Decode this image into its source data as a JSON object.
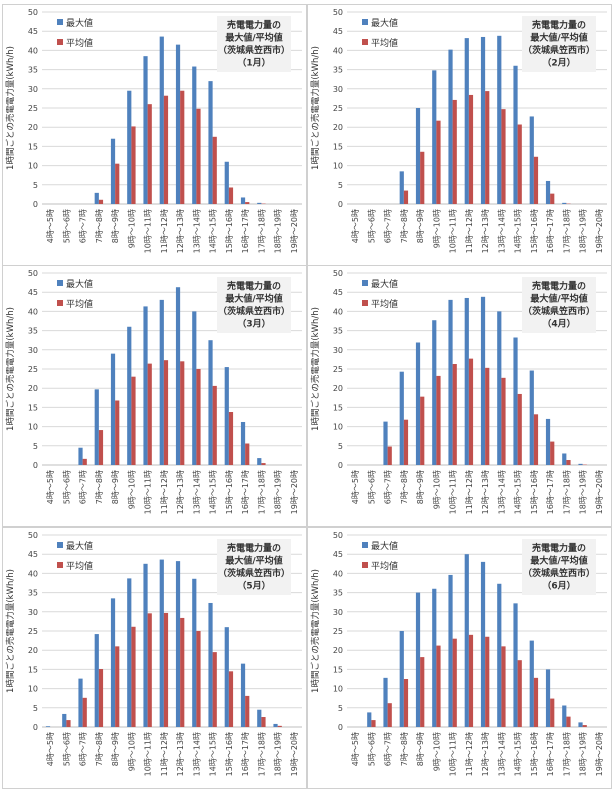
{
  "chart_data": [
    {
      "type": "bar",
      "title": [
        "売電電力量の",
        "最大値/平均値",
        "（茨城県笠西市）",
        "（1月）"
      ],
      "ylabel": "1時間ごとの売電電力量(kWh/h)",
      "ylim": [
        0,
        50
      ],
      "yticks": [
        0,
        5,
        10,
        15,
        20,
        25,
        30,
        35,
        40,
        45,
        50
      ],
      "grid": true,
      "legend_position": "top-left",
      "categories": [
        "4時～5時",
        "5時～6時",
        "6時～7時",
        "7時～8時",
        "8時～9時",
        "9時～10時",
        "10時～11時",
        "11時～12時",
        "12時～13時",
        "13時～14時",
        "14時～15時",
        "15時～16時",
        "16時～17時",
        "17時～18時",
        "18時～19時",
        "19時～20時"
      ],
      "series": [
        {
          "name": "最大値",
          "color": "#4f81bd",
          "values": [
            0,
            0,
            0,
            2.9,
            17,
            29.5,
            38.5,
            43.6,
            41.5,
            35.8,
            32,
            11,
            1.7,
            0.3,
            0,
            0
          ]
        },
        {
          "name": "平均値",
          "color": "#c0504d",
          "values": [
            0,
            0,
            0,
            1.1,
            10.5,
            20.2,
            26,
            28.2,
            29.5,
            24.8,
            17.5,
            4.3,
            0.5,
            0.1,
            0,
            0
          ]
        }
      ]
    },
    {
      "type": "bar",
      "title": [
        "売電電力量の",
        "最大値/平均値",
        "（茨城県笠西市）",
        "（2月）"
      ],
      "ylabel": "1時間ごとの売電電力量(kWh/h)",
      "ylim": [
        0,
        50
      ],
      "yticks": [
        0,
        5,
        10,
        15,
        20,
        25,
        30,
        35,
        40,
        45,
        50
      ],
      "grid": true,
      "legend_position": "top-left",
      "categories": [
        "4時～5時",
        "5時～6時",
        "6時～7時",
        "7時～8時",
        "8時～9時",
        "9時～10時",
        "10時～11時",
        "11時～12時",
        "12時～13時",
        "13時～14時",
        "14時～15時",
        "15時～16時",
        "16時～17時",
        "17時～18時",
        "18時～19時",
        "19時～20時"
      ],
      "series": [
        {
          "name": "最大値",
          "color": "#4f81bd",
          "values": [
            0,
            0,
            0,
            8.5,
            25,
            34.8,
            40.2,
            43.2,
            43.5,
            43.8,
            36,
            22.8,
            6,
            0.3,
            0,
            0
          ]
        },
        {
          "name": "平均値",
          "color": "#c0504d",
          "values": [
            0,
            0,
            0,
            3.5,
            13.6,
            21.7,
            27.1,
            28.4,
            29.4,
            24.7,
            20.7,
            12.3,
            2.7,
            0.1,
            0,
            0
          ]
        }
      ]
    },
    {
      "type": "bar",
      "title": [
        "売電電力量の",
        "最大値/平均値",
        "（茨城県笠西市）",
        "（3月）"
      ],
      "ylabel": "1時間ごとの売電電力量(kWh/h)",
      "ylim": [
        0,
        50
      ],
      "yticks": [
        0,
        5,
        10,
        15,
        20,
        25,
        30,
        35,
        40,
        45,
        50
      ],
      "grid": true,
      "legend_position": "top-left",
      "categories": [
        "4時～5時",
        "5時～6時",
        "6時～7時",
        "7時～8時",
        "8時～9時",
        "9時～10時",
        "10時～11時",
        "11時～12時",
        "12時～13時",
        "13時～14時",
        "14時～15時",
        "15時～16時",
        "16時～17時",
        "17時～18時",
        "18時～19時",
        "19時～20時"
      ],
      "series": [
        {
          "name": "最大値",
          "color": "#4f81bd",
          "values": [
            0,
            0,
            4.5,
            19.7,
            29,
            36,
            41.3,
            43,
            46.3,
            40,
            32.5,
            25.5,
            11.2,
            1.8,
            0,
            0
          ]
        },
        {
          "name": "平均値",
          "color": "#c0504d",
          "values": [
            0,
            0,
            1.6,
            9.1,
            16.8,
            23,
            26.4,
            27.3,
            27,
            25,
            20.6,
            13.8,
            5.6,
            0.5,
            0,
            0
          ]
        }
      ]
    },
    {
      "type": "bar",
      "title": [
        "売電電力量の",
        "最大値/平均値",
        "（茨城県笠西市）",
        "（4月）"
      ],
      "ylabel": "1時間ごとの売電電力量(kWh/h)",
      "ylim": [
        0,
        50
      ],
      "yticks": [
        0,
        5,
        10,
        15,
        20,
        25,
        30,
        35,
        40,
        45,
        50
      ],
      "grid": true,
      "legend_position": "top-left",
      "categories": [
        "4時～5時",
        "5時～6時",
        "6時～7時",
        "7時～8時",
        "8時～9時",
        "9時～10時",
        "10時～11時",
        "11時～12時",
        "12時～13時",
        "13時～14時",
        "14時～15時",
        "15時～16時",
        "16時～17時",
        "17時～18時",
        "18時～19時",
        "19時～20時"
      ],
      "series": [
        {
          "name": "最大値",
          "color": "#4f81bd",
          "values": [
            0,
            0,
            11.3,
            24.3,
            31.9,
            37.7,
            43,
            43.5,
            43.8,
            40,
            33.2,
            24.6,
            12,
            3,
            0.3,
            0
          ]
        },
        {
          "name": "平均値",
          "color": "#c0504d",
          "values": [
            0,
            0,
            4.8,
            11.8,
            17.8,
            23.2,
            26.3,
            27.7,
            25.3,
            22.7,
            18.5,
            13.2,
            6.1,
            1.3,
            0.1,
            0
          ]
        }
      ]
    },
    {
      "type": "bar",
      "title": [
        "売電電力量の",
        "最大値/平均値",
        "（茨城県笠西市）",
        "（5月）"
      ],
      "ylabel": "1時間ごとの売電電力量(kWh/h)",
      "ylim": [
        0,
        50
      ],
      "yticks": [
        0,
        5,
        10,
        15,
        20,
        25,
        30,
        35,
        40,
        45,
        50
      ],
      "grid": true,
      "legend_position": "top-left",
      "categories": [
        "4時～5時",
        "5時～6時",
        "6時～7時",
        "7時～8時",
        "8時～9時",
        "9時～10時",
        "10時～11時",
        "11時～12時",
        "12時～13時",
        "13時～14時",
        "14時～15時",
        "15時～16時",
        "16時～17時",
        "17時～18時",
        "18時～19時",
        "19時～20時"
      ],
      "series": [
        {
          "name": "最大値",
          "color": "#4f81bd",
          "values": [
            0.2,
            3.4,
            12.6,
            24.2,
            33.5,
            38.7,
            42.5,
            43.6,
            43.2,
            38.6,
            32.3,
            26,
            16.5,
            4.5,
            0.8,
            0
          ]
        },
        {
          "name": "平均値",
          "color": "#c0504d",
          "values": [
            0,
            1.8,
            7.6,
            15.1,
            21,
            26.1,
            29.6,
            29.7,
            28.4,
            25,
            19.5,
            14.5,
            8.1,
            2.6,
            0.3,
            0
          ]
        }
      ]
    },
    {
      "type": "bar",
      "title": [
        "売電電力量の",
        "最大値/平均値",
        "（茨城県笠西市）",
        "（6月）"
      ],
      "ylabel": "1時間ごとの売電電力量(kWh/h)",
      "ylim": [
        0,
        50
      ],
      "yticks": [
        0,
        5,
        10,
        15,
        20,
        25,
        30,
        35,
        40,
        45,
        50
      ],
      "grid": true,
      "legend_position": "top-left",
      "categories": [
        "4時～5時",
        "5時～6時",
        "6時～7時",
        "7時～8時",
        "8時～9時",
        "9時～10時",
        "10時～11時",
        "11時～12時",
        "12時～13時",
        "13時～14時",
        "14時～15時",
        "15時～16時",
        "16時～17時",
        "17時～18時",
        "18時～19時",
        "19時～20時"
      ],
      "series": [
        {
          "name": "最大値",
          "color": "#4f81bd",
          "values": [
            0,
            3.8,
            12.8,
            25,
            35,
            36,
            39.6,
            45,
            43,
            37.3,
            32.2,
            22.5,
            15,
            5.6,
            1.2,
            0
          ]
        },
        {
          "name": "平均値",
          "color": "#c0504d",
          "values": [
            0,
            1.8,
            6.2,
            12.5,
            18.2,
            21.2,
            23,
            24,
            23.5,
            21,
            17.4,
            12.8,
            7.4,
            2.7,
            0.5,
            0
          ]
        }
      ]
    }
  ]
}
